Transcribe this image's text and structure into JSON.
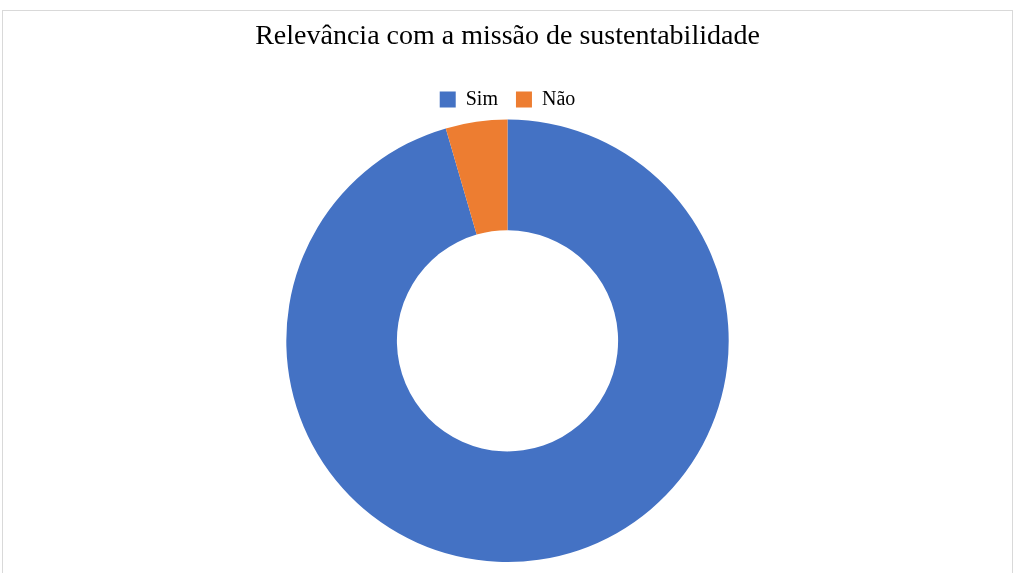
{
  "chart_data": {
    "type": "donut",
    "title": "Relevância com a missão de sustentabilidade",
    "categories": [
      "Sim",
      "Não"
    ],
    "values": [
      95.5,
      4.5
    ],
    "colors": [
      "#4472c4",
      "#ed7d31"
    ],
    "legend": "top"
  }
}
